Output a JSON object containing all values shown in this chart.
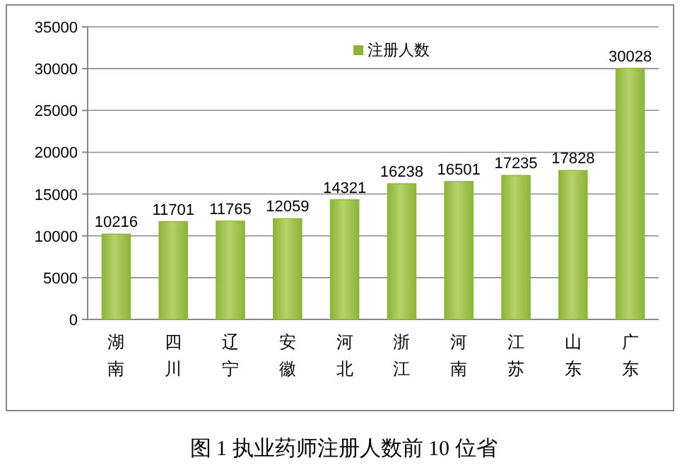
{
  "chart_data": {
    "type": "bar",
    "title": "图 1 执业药师注册人数前 10 位省",
    "categories": [
      "湖南",
      "四川",
      "辽宁",
      "安徽",
      "河北",
      "浙江",
      "河南",
      "江苏",
      "山东",
      "广东"
    ],
    "series": [
      {
        "name": "注册人数",
        "color": "#8db33a",
        "values": [
          10216,
          11701,
          11765,
          12059,
          14321,
          16238,
          16501,
          17235,
          17828,
          30028
        ]
      }
    ],
    "ylim": [
      0,
      35000
    ],
    "yticks": [
      0,
      5000,
      10000,
      15000,
      20000,
      25000,
      30000,
      35000
    ],
    "grid": "y",
    "legend": "top",
    "data_labels": true
  }
}
